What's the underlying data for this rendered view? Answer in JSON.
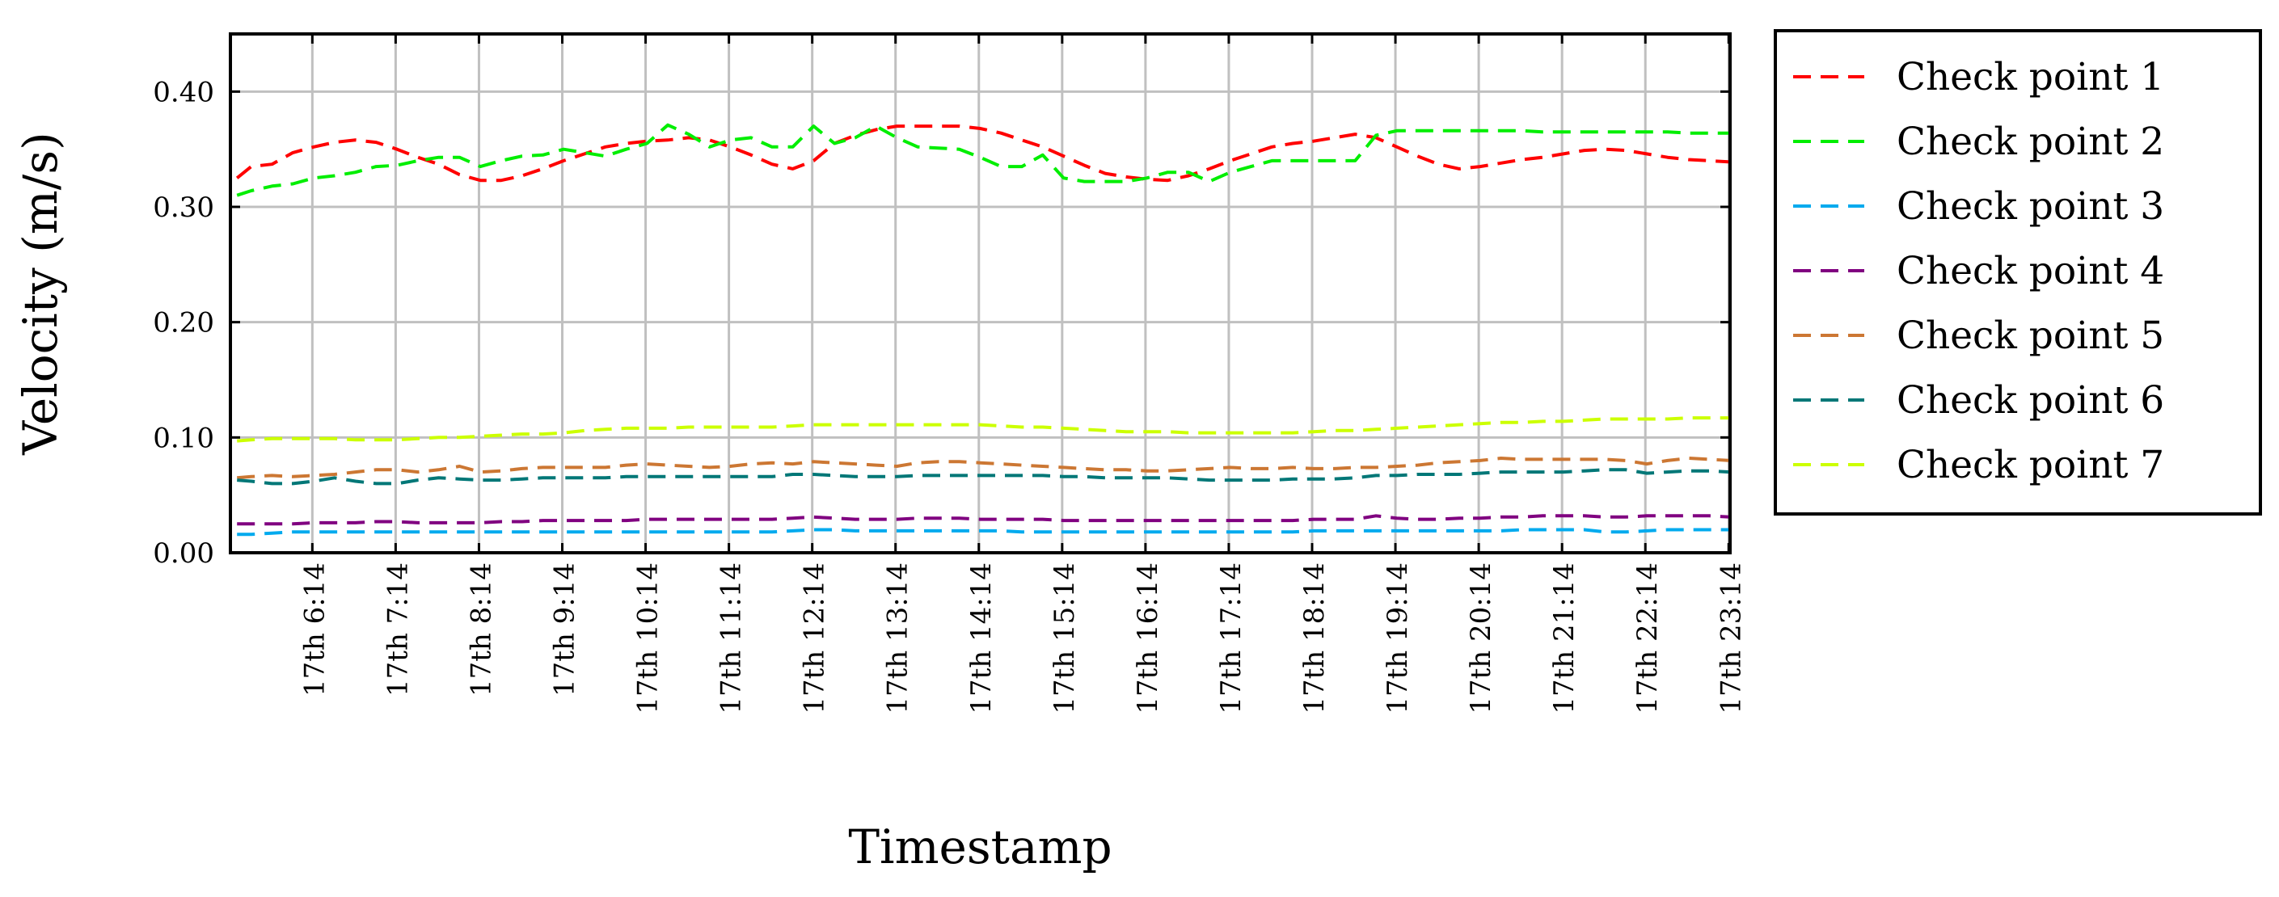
{
  "chart_data": {
    "type": "line",
    "xlabel": "Timestamp",
    "ylabel": "Velocity (m/s)",
    "x_ticks": [
      "17th 6:14",
      "17th 7:14",
      "17th 8:14",
      "17th 9:14",
      "17th 10:14",
      "17th 11:14",
      "17th 12:14",
      "17th 13:14",
      "17th 14:14",
      "17th 15:14",
      "17th 16:14",
      "17th 17:14",
      "17th 18:14",
      "17th 19:14",
      "17th 20:14",
      "17th 21:14",
      "17th 22:14",
      "17th 23:14"
    ],
    "x_unit": "hours since 17th 0:00",
    "xlim": [
      5.25,
      23.25
    ],
    "ylim": [
      0,
      0.45
    ],
    "y_ticks": [
      0,
      0.1,
      0.2,
      0.3,
      0.4
    ],
    "y_tick_labels": [
      "0.00",
      "0.10",
      "0.20",
      "0.30",
      "0.40"
    ],
    "grid": true,
    "legend_position": "outside-right",
    "x": [
      5.33,
      5.5,
      5.75,
      6.0,
      6.25,
      6.5,
      6.75,
      7.0,
      7.25,
      7.5,
      7.75,
      8.0,
      8.25,
      8.5,
      8.75,
      9.0,
      9.25,
      9.5,
      9.75,
      10.0,
      10.25,
      10.5,
      10.75,
      11.0,
      11.25,
      11.5,
      11.75,
      12.0,
      12.25,
      12.5,
      12.75,
      13.0,
      13.25,
      13.5,
      13.75,
      14.0,
      14.25,
      14.5,
      14.75,
      15.0,
      15.25,
      15.5,
      15.75,
      16.0,
      16.25,
      16.5,
      16.75,
      17.0,
      17.25,
      17.5,
      17.75,
      18.0,
      18.25,
      18.5,
      18.75,
      19.0,
      19.25,
      19.5,
      19.75,
      20.0,
      20.25,
      20.5,
      20.75,
      21.0,
      21.25,
      21.5,
      21.75,
      22.0,
      22.25,
      22.5,
      22.75,
      23.0,
      23.25
    ],
    "series": [
      {
        "name": "Check point 1",
        "color": "#ff0000",
        "values": [
          0.325,
          0.335,
          0.337,
          0.347,
          0.352,
          0.356,
          0.358,
          0.356,
          0.35,
          0.343,
          0.337,
          0.328,
          0.323,
          0.323,
          0.327,
          0.333,
          0.34,
          0.346,
          0.352,
          0.355,
          0.357,
          0.358,
          0.36,
          0.358,
          0.352,
          0.345,
          0.337,
          0.333,
          0.34,
          0.355,
          0.362,
          0.367,
          0.37,
          0.37,
          0.37,
          0.37,
          0.368,
          0.364,
          0.358,
          0.352,
          0.344,
          0.336,
          0.329,
          0.326,
          0.324,
          0.323,
          0.327,
          0.333,
          0.34,
          0.346,
          0.352,
          0.355,
          0.357,
          0.36,
          0.363,
          0.36,
          0.352,
          0.344,
          0.337,
          0.333,
          0.335,
          0.338,
          0.341,
          0.343,
          0.346,
          0.349,
          0.35,
          0.349,
          0.346,
          0.343,
          0.341,
          0.34,
          0.339
        ]
      },
      {
        "name": "Check point 2",
        "color": "#00ee00",
        "values": [
          0.31,
          0.314,
          0.318,
          0.32,
          0.325,
          0.327,
          0.33,
          0.335,
          0.336,
          0.34,
          0.343,
          0.343,
          0.335,
          0.34,
          0.344,
          0.345,
          0.35,
          0.347,
          0.344,
          0.35,
          0.355,
          0.371,
          0.363,
          0.352,
          0.358,
          0.36,
          0.352,
          0.352,
          0.37,
          0.355,
          0.36,
          0.37,
          0.36,
          0.352,
          0.351,
          0.35,
          0.343,
          0.335,
          0.335,
          0.345,
          0.325,
          0.322,
          0.322,
          0.322,
          0.325,
          0.33,
          0.33,
          0.322,
          0.33,
          0.335,
          0.34,
          0.34,
          0.34,
          0.34,
          0.34,
          0.362,
          0.366,
          0.366,
          0.366,
          0.366,
          0.366,
          0.366,
          0.366,
          0.365,
          0.365,
          0.365,
          0.365,
          0.365,
          0.365,
          0.365,
          0.364,
          0.364,
          0.364
        ]
      },
      {
        "name": "Check point 3",
        "color": "#00aaee",
        "values": [
          0.016,
          0.016,
          0.017,
          0.018,
          0.018,
          0.018,
          0.018,
          0.018,
          0.018,
          0.018,
          0.018,
          0.018,
          0.018,
          0.018,
          0.018,
          0.018,
          0.018,
          0.018,
          0.018,
          0.018,
          0.018,
          0.018,
          0.018,
          0.018,
          0.018,
          0.018,
          0.018,
          0.019,
          0.02,
          0.02,
          0.019,
          0.019,
          0.019,
          0.019,
          0.019,
          0.019,
          0.019,
          0.019,
          0.018,
          0.018,
          0.018,
          0.018,
          0.018,
          0.018,
          0.018,
          0.018,
          0.018,
          0.018,
          0.018,
          0.018,
          0.018,
          0.018,
          0.019,
          0.019,
          0.019,
          0.019,
          0.019,
          0.019,
          0.019,
          0.019,
          0.019,
          0.019,
          0.02,
          0.02,
          0.02,
          0.02,
          0.018,
          0.018,
          0.019,
          0.02,
          0.02,
          0.02,
          0.02
        ]
      },
      {
        "name": "Check point 4",
        "color": "#800080",
        "values": [
          0.025,
          0.025,
          0.025,
          0.025,
          0.026,
          0.026,
          0.026,
          0.027,
          0.027,
          0.026,
          0.026,
          0.026,
          0.026,
          0.027,
          0.027,
          0.028,
          0.028,
          0.028,
          0.028,
          0.028,
          0.029,
          0.029,
          0.029,
          0.029,
          0.029,
          0.029,
          0.029,
          0.03,
          0.031,
          0.03,
          0.029,
          0.029,
          0.029,
          0.03,
          0.03,
          0.03,
          0.029,
          0.029,
          0.029,
          0.029,
          0.028,
          0.028,
          0.028,
          0.028,
          0.028,
          0.028,
          0.028,
          0.028,
          0.028,
          0.028,
          0.028,
          0.028,
          0.029,
          0.029,
          0.029,
          0.032,
          0.03,
          0.029,
          0.029,
          0.03,
          0.03,
          0.031,
          0.031,
          0.032,
          0.032,
          0.032,
          0.031,
          0.031,
          0.032,
          0.032,
          0.032,
          0.032,
          0.031
        ]
      },
      {
        "name": "Check point 5",
        "color": "#cc7733",
        "values": [
          0.065,
          0.066,
          0.067,
          0.066,
          0.067,
          0.068,
          0.07,
          0.072,
          0.072,
          0.07,
          0.072,
          0.075,
          0.07,
          0.071,
          0.073,
          0.074,
          0.074,
          0.074,
          0.074,
          0.076,
          0.077,
          0.076,
          0.075,
          0.074,
          0.075,
          0.077,
          0.078,
          0.077,
          0.079,
          0.078,
          0.077,
          0.076,
          0.075,
          0.078,
          0.079,
          0.079,
          0.078,
          0.077,
          0.076,
          0.075,
          0.074,
          0.073,
          0.072,
          0.072,
          0.071,
          0.071,
          0.072,
          0.073,
          0.074,
          0.073,
          0.073,
          0.074,
          0.073,
          0.073,
          0.074,
          0.074,
          0.075,
          0.076,
          0.078,
          0.079,
          0.08,
          0.082,
          0.081,
          0.081,
          0.081,
          0.081,
          0.081,
          0.08,
          0.077,
          0.08,
          0.082,
          0.081,
          0.08
        ]
      },
      {
        "name": "Check point 6",
        "color": "#007777",
        "values": [
          0.063,
          0.062,
          0.06,
          0.06,
          0.062,
          0.065,
          0.062,
          0.06,
          0.06,
          0.063,
          0.065,
          0.064,
          0.063,
          0.063,
          0.064,
          0.065,
          0.065,
          0.065,
          0.065,
          0.066,
          0.066,
          0.066,
          0.066,
          0.066,
          0.066,
          0.066,
          0.066,
          0.068,
          0.068,
          0.067,
          0.066,
          0.066,
          0.066,
          0.067,
          0.067,
          0.067,
          0.067,
          0.067,
          0.067,
          0.067,
          0.066,
          0.066,
          0.065,
          0.065,
          0.065,
          0.065,
          0.064,
          0.063,
          0.063,
          0.063,
          0.063,
          0.064,
          0.064,
          0.064,
          0.065,
          0.067,
          0.067,
          0.068,
          0.068,
          0.068,
          0.069,
          0.07,
          0.07,
          0.07,
          0.07,
          0.071,
          0.072,
          0.072,
          0.069,
          0.07,
          0.071,
          0.071,
          0.07
        ]
      },
      {
        "name": "Check point 7",
        "color": "#ccff00",
        "values": [
          0.097,
          0.098,
          0.099,
          0.099,
          0.099,
          0.099,
          0.098,
          0.098,
          0.098,
          0.099,
          0.1,
          0.1,
          0.101,
          0.102,
          0.103,
          0.103,
          0.104,
          0.106,
          0.107,
          0.108,
          0.108,
          0.108,
          0.109,
          0.109,
          0.109,
          0.109,
          0.109,
          0.11,
          0.111,
          0.111,
          0.111,
          0.111,
          0.111,
          0.111,
          0.111,
          0.111,
          0.111,
          0.11,
          0.109,
          0.109,
          0.108,
          0.107,
          0.106,
          0.105,
          0.105,
          0.105,
          0.104,
          0.104,
          0.104,
          0.104,
          0.104,
          0.104,
          0.105,
          0.106,
          0.106,
          0.107,
          0.108,
          0.109,
          0.11,
          0.111,
          0.112,
          0.113,
          0.113,
          0.114,
          0.114,
          0.115,
          0.116,
          0.116,
          0.116,
          0.116,
          0.117,
          0.117,
          0.117
        ]
      }
    ]
  }
}
